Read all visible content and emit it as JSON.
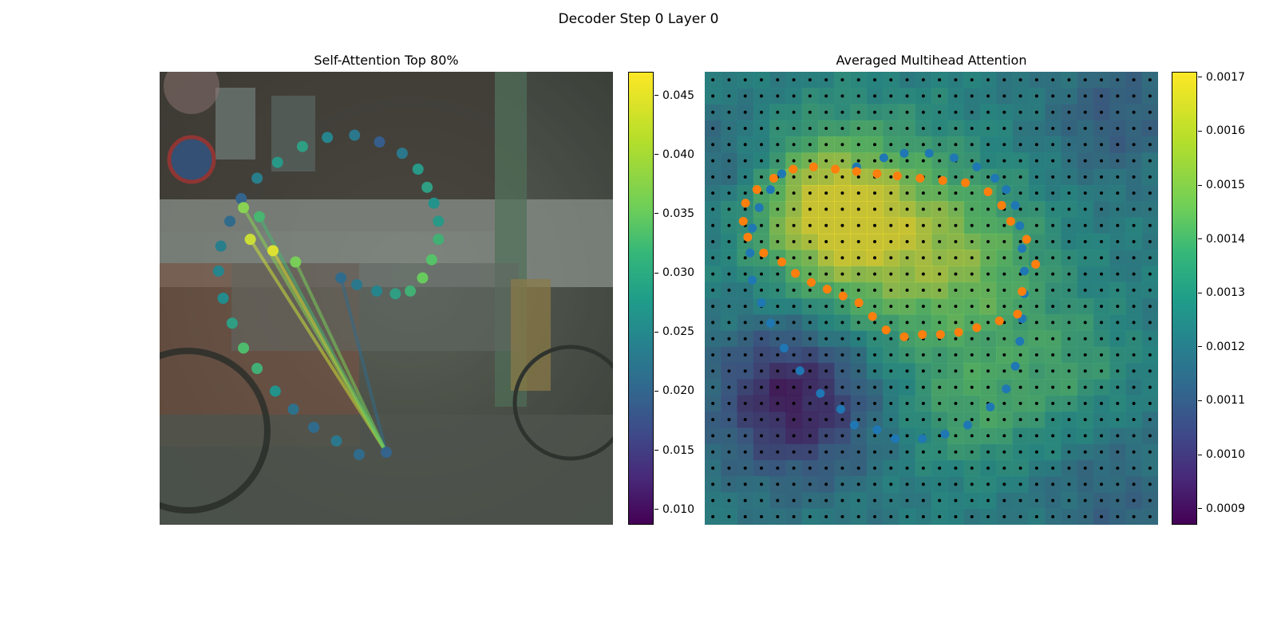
{
  "figure": {
    "suptitle": "Decoder Step 0 Layer 0"
  },
  "colors": {
    "seq_a": "#1f77b4",
    "seq_b": "#ff7f0e",
    "grid_dot": "#000000",
    "colormap": "viridis"
  },
  "chart_data": [
    {
      "type": "scatter",
      "title": "Self-Attention Top 80%",
      "background": "road scene photo (car, bicycles, street pole)",
      "colorbar": {
        "ticks": [
          0.01,
          0.015,
          0.02,
          0.025,
          0.03,
          0.035,
          0.04,
          0.045
        ],
        "range": [
          0.0087,
          0.047
        ]
      },
      "points": [
        {
          "x": 0.5,
          "y": 0.84,
          "v": 0.021
        },
        {
          "x": 0.44,
          "y": 0.845,
          "v": 0.022
        },
        {
          "x": 0.39,
          "y": 0.815,
          "v": 0.024
        },
        {
          "x": 0.34,
          "y": 0.785,
          "v": 0.022
        },
        {
          "x": 0.295,
          "y": 0.745,
          "v": 0.023
        },
        {
          "x": 0.255,
          "y": 0.705,
          "v": 0.028
        },
        {
          "x": 0.215,
          "y": 0.655,
          "v": 0.033
        },
        {
          "x": 0.185,
          "y": 0.61,
          "v": 0.035
        },
        {
          "x": 0.16,
          "y": 0.555,
          "v": 0.03
        },
        {
          "x": 0.14,
          "y": 0.5,
          "v": 0.027
        },
        {
          "x": 0.13,
          "y": 0.44,
          "v": 0.026
        },
        {
          "x": 0.135,
          "y": 0.385,
          "v": 0.025
        },
        {
          "x": 0.155,
          "y": 0.33,
          "v": 0.022
        },
        {
          "x": 0.18,
          "y": 0.28,
          "v": 0.021
        },
        {
          "x": 0.215,
          "y": 0.235,
          "v": 0.025
        },
        {
          "x": 0.26,
          "y": 0.2,
          "v": 0.029
        },
        {
          "x": 0.315,
          "y": 0.165,
          "v": 0.03
        },
        {
          "x": 0.37,
          "y": 0.145,
          "v": 0.026
        },
        {
          "x": 0.43,
          "y": 0.14,
          "v": 0.024
        },
        {
          "x": 0.485,
          "y": 0.155,
          "v": 0.02
        },
        {
          "x": 0.535,
          "y": 0.18,
          "v": 0.024
        },
        {
          "x": 0.57,
          "y": 0.215,
          "v": 0.029
        },
        {
          "x": 0.59,
          "y": 0.255,
          "v": 0.03
        },
        {
          "x": 0.605,
          "y": 0.29,
          "v": 0.028
        },
        {
          "x": 0.615,
          "y": 0.33,
          "v": 0.029
        },
        {
          "x": 0.615,
          "y": 0.37,
          "v": 0.033
        },
        {
          "x": 0.6,
          "y": 0.415,
          "v": 0.036
        },
        {
          "x": 0.58,
          "y": 0.455,
          "v": 0.038
        },
        {
          "x": 0.553,
          "y": 0.484,
          "v": 0.033
        },
        {
          "x": 0.52,
          "y": 0.49,
          "v": 0.03
        },
        {
          "x": 0.479,
          "y": 0.484,
          "v": 0.026
        },
        {
          "x": 0.435,
          "y": 0.47,
          "v": 0.024
        },
        {
          "x": 0.4,
          "y": 0.455,
          "v": 0.022
        },
        {
          "x": 0.3,
          "y": 0.42,
          "v": 0.039
        },
        {
          "x": 0.25,
          "y": 0.395,
          "v": 0.045
        },
        {
          "x": 0.2,
          "y": 0.37,
          "v": 0.044
        },
        {
          "x": 0.185,
          "y": 0.3,
          "v": 0.04
        },
        {
          "x": 0.22,
          "y": 0.32,
          "v": 0.034
        }
      ],
      "lines_from_index": 32
    },
    {
      "type": "heatmap",
      "title": "Averaged Multihead Attention",
      "grid": {
        "rows": 28,
        "cols": 28,
        "dot_color": "#000000"
      },
      "colorbar": {
        "ticks": [
          0.0009,
          0.001,
          0.0011,
          0.0012,
          0.0013,
          0.0014,
          0.0015,
          0.0016,
          0.0017
        ],
        "range": [
          0.00087,
          0.00171
        ]
      },
      "series": [
        {
          "color": "#1f77b4",
          "points": [
            {
              "x": 0.335,
              "y": 0.21
            },
            {
              "x": 0.395,
              "y": 0.19
            },
            {
              "x": 0.44,
              "y": 0.18
            },
            {
              "x": 0.495,
              "y": 0.18
            },
            {
              "x": 0.55,
              "y": 0.19
            },
            {
              "x": 0.6,
              "y": 0.21
            },
            {
              "x": 0.64,
              "y": 0.235
            },
            {
              "x": 0.665,
              "y": 0.26
            },
            {
              "x": 0.685,
              "y": 0.295
            },
            {
              "x": 0.695,
              "y": 0.34
            },
            {
              "x": 0.7,
              "y": 0.39
            },
            {
              "x": 0.705,
              "y": 0.44
            },
            {
              "x": 0.705,
              "y": 0.49
            },
            {
              "x": 0.7,
              "y": 0.545
            },
            {
              "x": 0.695,
              "y": 0.595
            },
            {
              "x": 0.685,
              "y": 0.65
            },
            {
              "x": 0.665,
              "y": 0.7
            },
            {
              "x": 0.63,
              "y": 0.74
            },
            {
              "x": 0.58,
              "y": 0.78
            },
            {
              "x": 0.53,
              "y": 0.8
            },
            {
              "x": 0.48,
              "y": 0.81
            },
            {
              "x": 0.42,
              "y": 0.81
            },
            {
              "x": 0.38,
              "y": 0.79
            },
            {
              "x": 0.33,
              "y": 0.78
            },
            {
              "x": 0.3,
              "y": 0.745
            },
            {
              "x": 0.255,
              "y": 0.71
            },
            {
              "x": 0.21,
              "y": 0.66
            },
            {
              "x": 0.175,
              "y": 0.61
            },
            {
              "x": 0.145,
              "y": 0.555
            },
            {
              "x": 0.125,
              "y": 0.51
            },
            {
              "x": 0.105,
              "y": 0.46
            },
            {
              "x": 0.1,
              "y": 0.4
            },
            {
              "x": 0.105,
              "y": 0.345
            },
            {
              "x": 0.12,
              "y": 0.3
            },
            {
              "x": 0.145,
              "y": 0.26
            },
            {
              "x": 0.17,
              "y": 0.225
            }
          ]
        },
        {
          "color": "#ff7f0e",
          "points": [
            {
              "x": 0.115,
              "y": 0.26
            },
            {
              "x": 0.152,
              "y": 0.235
            },
            {
              "x": 0.195,
              "y": 0.215
            },
            {
              "x": 0.24,
              "y": 0.21
            },
            {
              "x": 0.288,
              "y": 0.215
            },
            {
              "x": 0.335,
              "y": 0.22
            },
            {
              "x": 0.38,
              "y": 0.225
            },
            {
              "x": 0.425,
              "y": 0.23
            },
            {
              "x": 0.475,
              "y": 0.235
            },
            {
              "x": 0.525,
              "y": 0.24
            },
            {
              "x": 0.575,
              "y": 0.245
            },
            {
              "x": 0.625,
              "y": 0.265
            },
            {
              "x": 0.655,
              "y": 0.295
            },
            {
              "x": 0.675,
              "y": 0.33
            },
            {
              "x": 0.71,
              "y": 0.37
            },
            {
              "x": 0.73,
              "y": 0.425
            },
            {
              "x": 0.7,
              "y": 0.485
            },
            {
              "x": 0.69,
              "y": 0.535
            },
            {
              "x": 0.65,
              "y": 0.55
            },
            {
              "x": 0.6,
              "y": 0.565
            },
            {
              "x": 0.56,
              "y": 0.575
            },
            {
              "x": 0.52,
              "y": 0.58
            },
            {
              "x": 0.48,
              "y": 0.58
            },
            {
              "x": 0.44,
              "y": 0.585
            },
            {
              "x": 0.4,
              "y": 0.57
            },
            {
              "x": 0.37,
              "y": 0.54
            },
            {
              "x": 0.34,
              "y": 0.51
            },
            {
              "x": 0.305,
              "y": 0.495
            },
            {
              "x": 0.27,
              "y": 0.48
            },
            {
              "x": 0.235,
              "y": 0.465
            },
            {
              "x": 0.2,
              "y": 0.445
            },
            {
              "x": 0.17,
              "y": 0.42
            },
            {
              "x": 0.13,
              "y": 0.4
            },
            {
              "x": 0.095,
              "y": 0.365
            },
            {
              "x": 0.085,
              "y": 0.33
            },
            {
              "x": 0.09,
              "y": 0.29
            }
          ]
        }
      ]
    }
  ]
}
